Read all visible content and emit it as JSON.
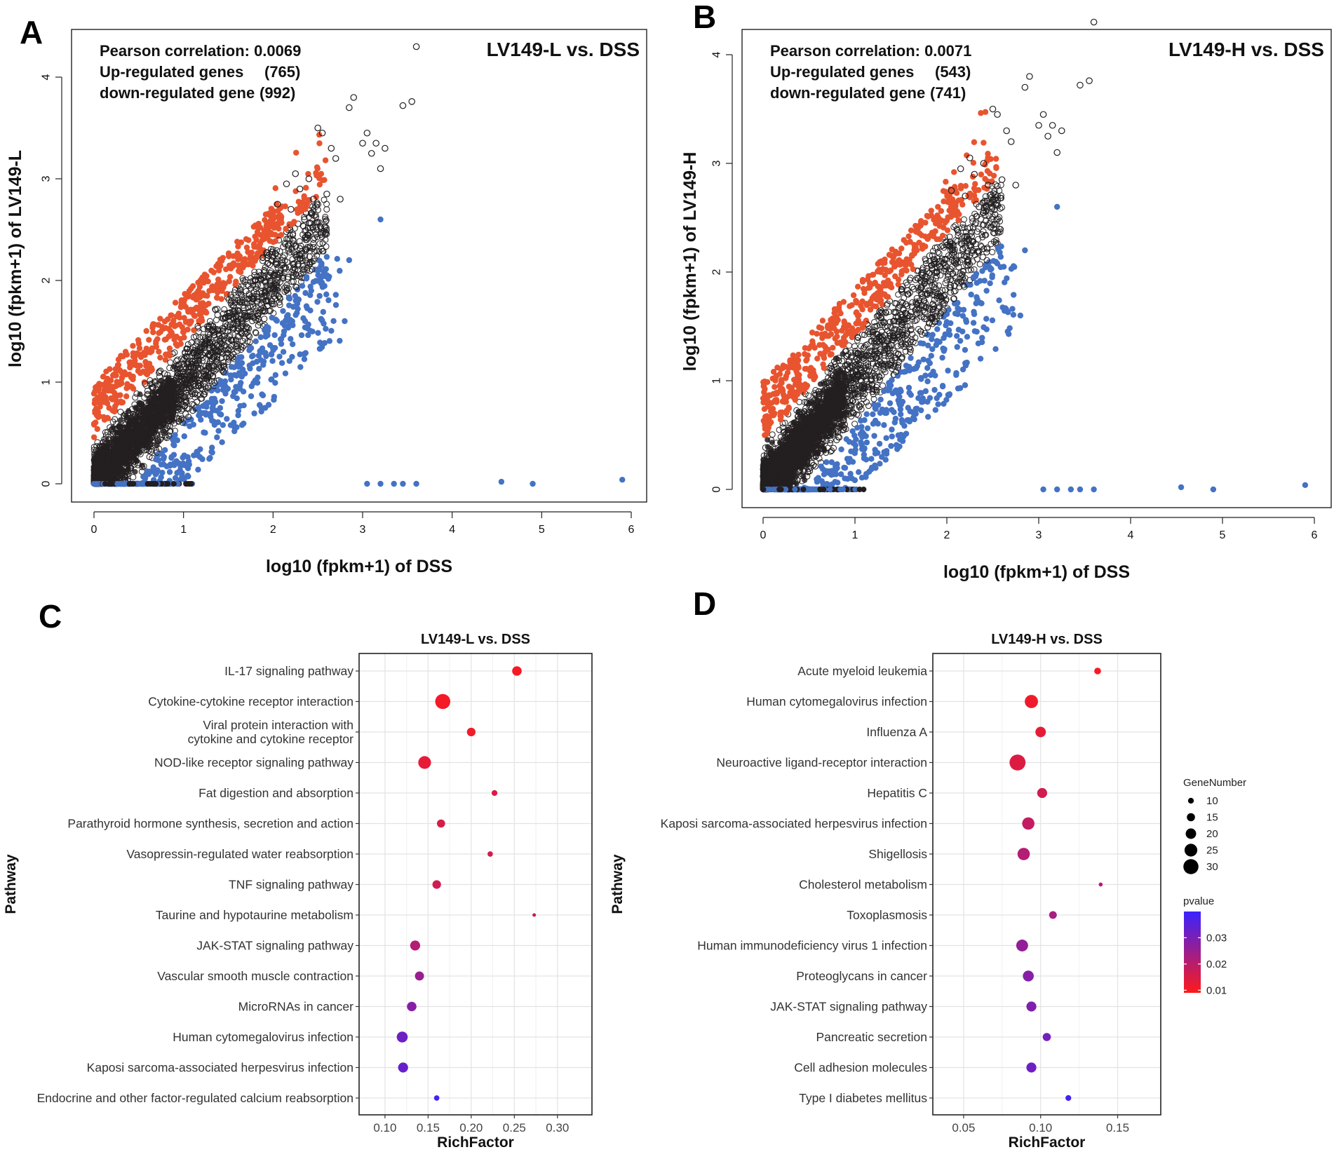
{
  "chart_data": [
    {
      "id": "A",
      "type": "scatter",
      "panel_label": "A",
      "title": "LV149-L vs. DSS",
      "xlabel": "log10 (fpkm+1) of DSS",
      "ylabel": "log10 (fpkm+1) of LV149-L",
      "xlim": [
        0,
        6
      ],
      "ylim": [
        0,
        4
      ],
      "xticks": [
        "0",
        "1",
        "2",
        "3",
        "4",
        "5",
        "6"
      ],
      "yticks": [
        "0",
        "1",
        "2",
        "3",
        "4"
      ],
      "stats": {
        "correlation_label": "Pearson correlation: 0.0069",
        "up_label": "Up-regulated genes",
        "up_count": "(765)",
        "down_label": "down-regulated gene",
        "down_count": "(992)"
      },
      "series": [
        {
          "name": "up-regulated",
          "color": "#e8542f"
        },
        {
          "name": "unchanged",
          "color": "#231f20"
        },
        {
          "name": "down-regulated",
          "color": "#4472c4"
        }
      ]
    },
    {
      "id": "B",
      "type": "scatter",
      "panel_label": "B",
      "title": "LV149-H vs. DSS",
      "xlabel": "log10 (fpkm+1) of DSS",
      "ylabel": "log10 (fpkm+1) of LV149-H",
      "xlim": [
        0,
        6
      ],
      "ylim": [
        0,
        4
      ],
      "xticks": [
        "0",
        "1",
        "2",
        "3",
        "4",
        "5",
        "6"
      ],
      "yticks": [
        "0",
        "1",
        "2",
        "3",
        "4"
      ],
      "stats": {
        "correlation_label": "Pearson correlation: 0.0071",
        "up_label": "Up-regulated genes",
        "up_count": "(543)",
        "down_label": "down-regulated gene",
        "down_count": "(741)"
      },
      "series": [
        {
          "name": "up-regulated",
          "color": "#e8542f"
        },
        {
          "name": "unchanged",
          "color": "#231f20"
        },
        {
          "name": "down-regulated",
          "color": "#4472c4"
        }
      ]
    },
    {
      "id": "C",
      "type": "scatter",
      "panel_label": "C",
      "title": "LV149-L vs. DSS",
      "xlabel": "RichFactor",
      "ylabel": "Pathway",
      "xlim": [
        0.07,
        0.34
      ],
      "xticks": [
        0.1,
        0.15,
        0.2,
        0.25,
        0.3
      ],
      "xtick_labels": [
        "0.10",
        "0.15",
        "0.20",
        "0.25",
        "0.30"
      ],
      "pathways": [
        {
          "label": "IL-17 signaling pathway",
          "rich": 0.253,
          "gene": 18,
          "p": 0.0105
        },
        {
          "label": "Cytokine-cytokine receptor interaction",
          "rich": 0.167,
          "gene": 30,
          "p": 0.0108
        },
        {
          "label": "Viral protein interaction with",
          "label2": "cytokine and cytokine receptor",
          "rich": 0.2,
          "gene": 16,
          "p": 0.0112
        },
        {
          "label": "NOD-like receptor signaling pathway",
          "rich": 0.146,
          "gene": 25,
          "p": 0.013
        },
        {
          "label": "Fat digestion and absorption",
          "rich": 0.227,
          "gene": 10,
          "p": 0.0145
        },
        {
          "label": "Parathyroid hormone synthesis, secretion and action",
          "rich": 0.165,
          "gene": 15,
          "p": 0.0155
        },
        {
          "label": "Vasopressin-regulated water reabsorption",
          "rich": 0.222,
          "gene": 9,
          "p": 0.016
        },
        {
          "label": "TNF signaling pathway",
          "rich": 0.16,
          "gene": 16,
          "p": 0.0165
        },
        {
          "label": "Taurine and hypotaurine metabolism",
          "rich": 0.273,
          "gene": 5,
          "p": 0.0185
        },
        {
          "label": "JAK-STAT signaling pathway",
          "rich": 0.135,
          "gene": 19,
          "p": 0.021
        },
        {
          "label": "Vascular smooth muscle contraction",
          "rich": 0.14,
          "gene": 17,
          "p": 0.025
        },
        {
          "label": "MicroRNAs in cancer",
          "rich": 0.131,
          "gene": 18,
          "p": 0.028
        },
        {
          "label": "Human cytomegalovirus infection",
          "rich": 0.12,
          "gene": 21,
          "p": 0.032
        },
        {
          "label": "Kaposi sarcoma-associated herpesvirus infection",
          "rich": 0.121,
          "gene": 19,
          "p": 0.033
        },
        {
          "label": "Endocrine and other factor-regulated calcium reabsorption",
          "rich": 0.16,
          "gene": 9,
          "p": 0.038
        }
      ]
    },
    {
      "id": "D",
      "type": "scatter",
      "panel_label": "D",
      "title": "LV149-H vs. DSS",
      "xlabel": "RichFactor",
      "ylabel": "Pathway",
      "xlim": [
        0.03,
        0.178
      ],
      "xticks": [
        0.05,
        0.1,
        0.15
      ],
      "xtick_labels": [
        "0.05",
        "0.10",
        "0.15"
      ],
      "pathways": [
        {
          "label": "Acute myeloid leukemia",
          "rich": 0.137,
          "gene": 12,
          "p": 0.0103
        },
        {
          "label": "Human cytomegalovirus infection",
          "rich": 0.094,
          "gene": 26,
          "p": 0.0115
        },
        {
          "label": "Influenza A",
          "rich": 0.1,
          "gene": 20,
          "p": 0.013
        },
        {
          "label": "Neuroactive ligand-receptor interaction",
          "rich": 0.085,
          "gene": 32,
          "p": 0.0145
        },
        {
          "label": "Hepatitis C",
          "rich": 0.101,
          "gene": 19,
          "p": 0.016
        },
        {
          "label": "Kaposi sarcoma-associated herpesvirus infection",
          "rich": 0.092,
          "gene": 24,
          "p": 0.0185
        },
        {
          "label": "Shigellosis",
          "rich": 0.089,
          "gene": 24,
          "p": 0.021
        },
        {
          "label": "Cholesterol metabolism",
          "rich": 0.139,
          "gene": 6,
          "p": 0.0215
        },
        {
          "label": "Toxoplasmosis",
          "rich": 0.108,
          "gene": 14,
          "p": 0.023
        },
        {
          "label": "Human immunodeficiency virus 1 infection",
          "rich": 0.088,
          "gene": 23,
          "p": 0.026
        },
        {
          "label": "Proteoglycans in cancer",
          "rich": 0.092,
          "gene": 21,
          "p": 0.028
        },
        {
          "label": "JAK-STAT signaling pathway",
          "rich": 0.094,
          "gene": 19,
          "p": 0.029
        },
        {
          "label": "Pancreatic secretion",
          "rich": 0.104,
          "gene": 15,
          "p": 0.031
        },
        {
          "label": "Cell adhesion molecules",
          "rich": 0.094,
          "gene": 19,
          "p": 0.032
        },
        {
          "label": "Type I diabetes mellitus",
          "rich": 0.118,
          "gene": 10,
          "p": 0.038
        }
      ]
    }
  ],
  "legend": {
    "gene_title": "GeneNumber",
    "gene_values": [
      10,
      15,
      20,
      25,
      30
    ],
    "gene_labels": [
      "10",
      "15",
      "20",
      "25",
      "30"
    ],
    "pvalue_title": "pvalue",
    "pvalue_ticks": [
      0.03,
      0.02,
      0.01
    ],
    "pvalue_labels": [
      "0.03",
      "0.02",
      "0.01"
    ],
    "pvalue_range": [
      0.009,
      0.04
    ],
    "color_low": "#ff1a1a",
    "color_high": "#3a22ff"
  }
}
